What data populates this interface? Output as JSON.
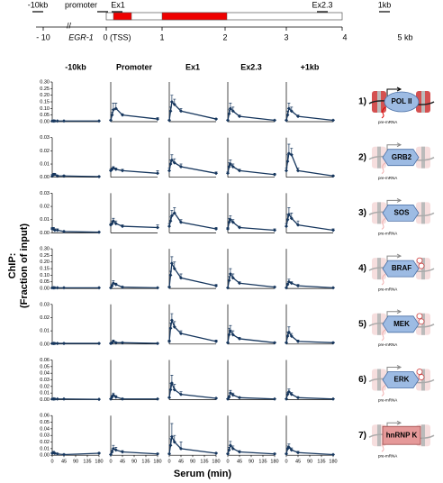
{
  "gene_map": {
    "regions": [
      "-10kb",
      "promoter",
      "Ex1",
      "Ex2.3",
      "1kb"
    ],
    "axis_labels": [
      "- 10",
      "0 (TSS)",
      "1",
      "2",
      "3",
      "4",
      "5 kb"
    ],
    "gene": "EGR-1"
  },
  "y_label": [
    "ChIP:",
    "(Fraction of input)"
  ],
  "x_label": "Serum  (min)",
  "panels": [
    {
      "number": "1)",
      "protein": "POL II"
    },
    {
      "number": "2)",
      "protein": "GRB2"
    },
    {
      "number": "3)",
      "protein": "SOS"
    },
    {
      "number": "4)",
      "protein": "BRAF"
    },
    {
      "number": "5)",
      "protein": "MEK"
    },
    {
      "number": "6)",
      "protein": "ERK"
    },
    {
      "number": "7)",
      "protein": "hnRNP K"
    }
  ],
  "pre_mrna_label": "pre-mRNA",
  "chart_data": [
    {
      "type": "line",
      "title": "-10kb",
      "x": [
        0,
        5,
        10,
        20,
        45,
        180
      ],
      "values": [
        0.005,
        0.005,
        0.005,
        0.005,
        0.005,
        0.005
      ],
      "errors": [
        0.002,
        0.002,
        0.002,
        0.002,
        0.002,
        0.002
      ],
      "color": "#17375e",
      "xlim": [
        0,
        180
      ],
      "ylim": [
        0,
        0.3
      ],
      "yticks": [
        {
          "value": 0,
          "label": "0.00"
        },
        0.05,
        {
          "value": 0.1,
          "label": "0.10"
        },
        0.15,
        {
          "value": 0.2,
          "label": "0.20"
        },
        0.25,
        {
          "value": 0.3,
          "label": "0.30"
        }
      ]
    },
    {
      "type": "line",
      "title": "Promoter",
      "x": [
        0,
        5,
        10,
        20,
        45,
        180
      ],
      "values": [
        0.01,
        0.05,
        0.09,
        0.1,
        0.05,
        0.02
      ],
      "errors": [
        0.005,
        0.02,
        0.05,
        0.04,
        0.01,
        0.01
      ],
      "color": "#17375e",
      "xlim": [
        0,
        180
      ],
      "ylim": [
        0,
        0.3
      ]
    },
    {
      "type": "line",
      "title": "Ex1",
      "x": [
        0,
        5,
        10,
        20,
        45,
        180
      ],
      "values": [
        0.01,
        0.08,
        0.15,
        0.13,
        0.08,
        0.02
      ],
      "errors": [
        0.005,
        0.03,
        0.05,
        0.04,
        0.02,
        0.005
      ],
      "color": "#17375e",
      "xlim": [
        0,
        180
      ],
      "ylim": [
        0,
        0.3
      ]
    },
    {
      "type": "line",
      "title": "Ex2.3",
      "x": [
        0,
        5,
        10,
        20,
        45,
        180
      ],
      "values": [
        0.01,
        0.06,
        0.1,
        0.08,
        0.04,
        0.01
      ],
      "errors": [
        0.005,
        0.03,
        0.04,
        0.03,
        0.01,
        0.005
      ],
      "color": "#17375e",
      "xlim": [
        0,
        180
      ],
      "ylim": [
        0,
        0.3
      ]
    },
    {
      "type": "line",
      "title": "+1kb",
      "x": [
        0,
        5,
        10,
        20,
        45,
        180
      ],
      "values": [
        0.01,
        0.05,
        0.1,
        0.08,
        0.04,
        0.01
      ],
      "errors": [
        0.005,
        0.03,
        0.04,
        0.03,
        0.01,
        0.005
      ],
      "color": "#17375e",
      "xlim": [
        0,
        180
      ],
      "ylim": [
        0,
        0.3
      ]
    },
    {
      "type": "line",
      "x": [
        0,
        5,
        10,
        20,
        45,
        180
      ],
      "values": [
        0.001,
        0.002,
        0.002,
        0.001,
        0.001,
        0.0005
      ],
      "errors": [
        0.001,
        0.001,
        0.001,
        0.0005,
        0.0005,
        0.0003
      ],
      "color": "#17375e",
      "xlim": [
        0,
        180
      ],
      "ylim": [
        0,
        0.03
      ],
      "yticks": [
        {
          "value": 0,
          "label": "0.00"
        },
        0.01,
        0.02,
        0.03
      ]
    },
    {
      "type": "line",
      "x": [
        0,
        5,
        10,
        20,
        45,
        180
      ],
      "values": [
        0.005,
        0.006,
        0.007,
        0.006,
        0.005,
        0.003
      ],
      "errors": [
        0.001,
        0.001,
        0.001,
        0.001,
        0.001,
        0.002
      ],
      "color": "#17375e",
      "xlim": [
        0,
        180
      ],
      "ylim": [
        0,
        0.03
      ]
    },
    {
      "type": "line",
      "x": [
        0,
        5,
        10,
        20,
        45,
        180
      ],
      "values": [
        0.005,
        0.01,
        0.013,
        0.011,
        0.008,
        0.003
      ],
      "errors": [
        0.002,
        0.003,
        0.004,
        0.003,
        0.002,
        0.001
      ],
      "color": "#17375e",
      "xlim": [
        0,
        180
      ],
      "ylim": [
        0,
        0.03
      ]
    },
    {
      "type": "line",
      "x": [
        0,
        5,
        10,
        20,
        45,
        180
      ],
      "values": [
        0.003,
        0.008,
        0.01,
        0.008,
        0.005,
        0.002
      ],
      "errors": [
        0.001,
        0.003,
        0.003,
        0.002,
        0.001,
        0.001
      ],
      "color": "#17375e",
      "xlim": [
        0,
        180
      ],
      "ylim": [
        0,
        0.03
      ]
    },
    {
      "type": "line",
      "x": [
        0,
        5,
        10,
        20,
        45,
        180
      ],
      "values": [
        0.005,
        0.012,
        0.018,
        0.017,
        0.005,
        0.001
      ],
      "errors": [
        0.002,
        0.005,
        0.007,
        0.005,
        0.002,
        0.0005
      ],
      "color": "#17375e",
      "xlim": [
        0,
        180
      ],
      "ylim": [
        0,
        0.03
      ]
    },
    {
      "type": "line",
      "x": [
        0,
        5,
        10,
        20,
        45,
        180
      ],
      "values": [
        0.003,
        0.003,
        0.002,
        0.002,
        0.001,
        0.0005
      ],
      "errors": [
        0.001,
        0.001,
        0.001,
        0.001,
        0.0005,
        0.0003
      ],
      "color": "#17375e",
      "xlim": [
        0,
        180
      ],
      "ylim": [
        0,
        0.03
      ],
      "yticks": [
        {
          "value": 0,
          "label": "0.00"
        },
        0.01,
        0.02,
        0.03
      ]
    },
    {
      "type": "line",
      "x": [
        0,
        5,
        10,
        20,
        45,
        180
      ],
      "values": [
        0.006,
        0.007,
        0.009,
        0.007,
        0.005,
        0.004
      ],
      "errors": [
        0.001,
        0.002,
        0.002,
        0.002,
        0.001,
        0.002
      ],
      "color": "#17375e",
      "xlim": [
        0,
        180
      ],
      "ylim": [
        0,
        0.03
      ]
    },
    {
      "type": "line",
      "x": [
        0,
        5,
        10,
        20,
        45,
        180
      ],
      "values": [
        0.005,
        0.009,
        0.013,
        0.015,
        0.008,
        0.003
      ],
      "errors": [
        0.002,
        0.003,
        0.004,
        0.004,
        0.002,
        0.001
      ],
      "color": "#17375e",
      "xlim": [
        0,
        180
      ],
      "ylim": [
        0,
        0.03
      ]
    },
    {
      "type": "line",
      "x": [
        0,
        5,
        10,
        20,
        45,
        180
      ],
      "values": [
        0.003,
        0.008,
        0.01,
        0.008,
        0.004,
        0.002
      ],
      "errors": [
        0.001,
        0.003,
        0.003,
        0.002,
        0.001,
        0.001
      ],
      "color": "#17375e",
      "xlim": [
        0,
        180
      ],
      "ylim": [
        0,
        0.03
      ]
    },
    {
      "type": "line",
      "x": [
        0,
        5,
        10,
        20,
        45,
        180
      ],
      "values": [
        0.005,
        0.01,
        0.014,
        0.011,
        0.006,
        0.002
      ],
      "errors": [
        0.002,
        0.004,
        0.005,
        0.004,
        0.003,
        0.001
      ],
      "color": "#17375e",
      "xlim": [
        0,
        180
      ],
      "ylim": [
        0,
        0.03
      ]
    },
    {
      "type": "line",
      "x": [
        0,
        5,
        10,
        20,
        45,
        180
      ],
      "values": [
        0.005,
        0.005,
        0.005,
        0.005,
        0.005,
        0.005
      ],
      "errors": [
        0.002,
        0.002,
        0.002,
        0.002,
        0.002,
        0.002
      ],
      "color": "#17375e",
      "xlim": [
        0,
        180
      ],
      "ylim": [
        0,
        0.3
      ],
      "yticks": [
        {
          "value": 0,
          "label": "0.00"
        },
        0.05,
        {
          "value": 0.1,
          "label": "0.10"
        },
        0.15,
        {
          "value": 0.2,
          "label": "0.20"
        },
        0.25,
        {
          "value": 0.3,
          "label": "0.30"
        }
      ]
    },
    {
      "type": "line",
      "x": [
        0,
        5,
        10,
        20,
        45,
        180
      ],
      "values": [
        0.005,
        0.02,
        0.04,
        0.03,
        0.01,
        0.005
      ],
      "errors": [
        0.002,
        0.01,
        0.02,
        0.01,
        0.005,
        0.002
      ],
      "color": "#17375e",
      "xlim": [
        0,
        180
      ],
      "ylim": [
        0,
        0.3
      ]
    },
    {
      "type": "line",
      "x": [
        0,
        5,
        10,
        20,
        45,
        180
      ],
      "values": [
        0.01,
        0.1,
        0.19,
        0.15,
        0.08,
        0.02
      ],
      "errors": [
        0.005,
        0.03,
        0.05,
        0.05,
        0.03,
        0.01
      ],
      "color": "#17375e",
      "xlim": [
        0,
        180
      ],
      "ylim": [
        0,
        0.3
      ]
    },
    {
      "type": "line",
      "x": [
        0,
        5,
        10,
        20,
        45,
        180
      ],
      "values": [
        0.005,
        0.06,
        0.11,
        0.08,
        0.04,
        0.01
      ],
      "errors": [
        0.002,
        0.03,
        0.04,
        0.03,
        0.01,
        0.005
      ],
      "color": "#17375e",
      "xlim": [
        0,
        180
      ],
      "ylim": [
        0,
        0.3
      ]
    },
    {
      "type": "line",
      "x": [
        0,
        5,
        10,
        20,
        45,
        180
      ],
      "values": [
        0.005,
        0.03,
        0.05,
        0.04,
        0.02,
        0.005
      ],
      "errors": [
        0.002,
        0.01,
        0.02,
        0.01,
        0.01,
        0.002
      ],
      "color": "#17375e",
      "xlim": [
        0,
        180
      ],
      "ylim": [
        0,
        0.3
      ]
    },
    {
      "type": "line",
      "x": [
        0,
        5,
        10,
        20,
        45,
        180
      ],
      "values": [
        0.0005,
        0.0005,
        0.0005,
        0.0005,
        0.0005,
        0.0005
      ],
      "errors": [
        0.0003,
        0.0003,
        0.0003,
        0.0003,
        0.0003,
        0.0003
      ],
      "color": "#17375e",
      "xlim": [
        0,
        180
      ],
      "ylim": [
        0,
        0.03
      ],
      "yticks": [
        {
          "value": 0,
          "label": "0.00"
        },
        0.01,
        0.02,
        0.03
      ]
    },
    {
      "type": "line",
      "x": [
        0,
        5,
        10,
        20,
        45,
        180
      ],
      "values": [
        0.0005,
        0.001,
        0.002,
        0.001,
        0.001,
        0.0005
      ],
      "errors": [
        0.0003,
        0.0005,
        0.001,
        0.0005,
        0.0005,
        0.0003
      ],
      "color": "#17375e",
      "xlim": [
        0,
        180
      ],
      "ylim": [
        0,
        0.03
      ]
    },
    {
      "type": "line",
      "x": [
        0,
        5,
        10,
        20,
        45,
        180
      ],
      "values": [
        0.002,
        0.012,
        0.018,
        0.013,
        0.008,
        0.002
      ],
      "errors": [
        0.001,
        0.004,
        0.005,
        0.004,
        0.002,
        0.001
      ],
      "color": "#17375e",
      "xlim": [
        0,
        180
      ],
      "ylim": [
        0,
        0.03
      ]
    },
    {
      "type": "line",
      "x": [
        0,
        5,
        10,
        20,
        45,
        180
      ],
      "values": [
        0.001,
        0.007,
        0.01,
        0.007,
        0.004,
        0.001
      ],
      "errors": [
        0.0005,
        0.005,
        0.004,
        0.003,
        0.001,
        0.0005
      ],
      "color": "#17375e",
      "xlim": [
        0,
        180
      ],
      "ylim": [
        0,
        0.03
      ]
    },
    {
      "type": "line",
      "x": [
        0,
        5,
        10,
        20,
        45,
        180
      ],
      "values": [
        0.001,
        0.006,
        0.009,
        0.006,
        0.002,
        0.001
      ],
      "errors": [
        0.0005,
        0.003,
        0.004,
        0.002,
        0.001,
        0.0005
      ],
      "color": "#17375e",
      "xlim": [
        0,
        180
      ],
      "ylim": [
        0,
        0.03
      ]
    },
    {
      "type": "line",
      "x": [
        0,
        5,
        10,
        20,
        45,
        180
      ],
      "values": [
        0.001,
        0.001,
        0.001,
        0.001,
        0.001,
        0.0005
      ],
      "errors": [
        0.0005,
        0.0005,
        0.0005,
        0.0005,
        0.0005,
        0.0003
      ],
      "color": "#17375e",
      "xlim": [
        0,
        180
      ],
      "ylim": [
        0,
        0.06
      ],
      "yticks": [
        {
          "value": 0,
          "label": "0.00"
        },
        0.01,
        0.02,
        0.03,
        0.04,
        0.05,
        0.06
      ]
    },
    {
      "type": "line",
      "x": [
        0,
        5,
        10,
        20,
        45,
        180
      ],
      "values": [
        0.001,
        0.004,
        0.007,
        0.004,
        0.001,
        0.001
      ],
      "errors": [
        0.0005,
        0.002,
        0.003,
        0.002,
        0.001,
        0.0005
      ],
      "color": "#17375e",
      "xlim": [
        0,
        180
      ],
      "ylim": [
        0,
        0.06
      ]
    },
    {
      "type": "line",
      "x": [
        0,
        5,
        10,
        20,
        45,
        180
      ],
      "values": [
        0.003,
        0.015,
        0.025,
        0.015,
        0.008,
        0.002
      ],
      "errors": [
        0.001,
        0.01,
        0.012,
        0.008,
        0.004,
        0.001
      ],
      "color": "#17375e",
      "xlim": [
        0,
        180
      ],
      "ylim": [
        0,
        0.06
      ]
    },
    {
      "type": "line",
      "x": [
        0,
        5,
        10,
        20,
        45,
        180
      ],
      "values": [
        0.001,
        0.004,
        0.01,
        0.007,
        0.003,
        0.001
      ],
      "errors": [
        0.0005,
        0.002,
        0.004,
        0.003,
        0.001,
        0.0005
      ],
      "color": "#17375e",
      "xlim": [
        0,
        180
      ],
      "ylim": [
        0,
        0.06
      ]
    },
    {
      "type": "line",
      "x": [
        0,
        5,
        10,
        20,
        45,
        180
      ],
      "values": [
        0.001,
        0.008,
        0.012,
        0.008,
        0.003,
        0.001
      ],
      "errors": [
        0.0005,
        0.003,
        0.004,
        0.003,
        0.001,
        0.0005
      ],
      "color": "#17375e",
      "xlim": [
        0,
        180
      ],
      "ylim": [
        0,
        0.06
      ]
    },
    {
      "type": "line",
      "x": [
        0,
        5,
        10,
        20,
        45,
        180
      ],
      "values": [
        0.003,
        0.004,
        0.003,
        0.002,
        0.001,
        0.003
      ],
      "errors": [
        0.001,
        0.002,
        0.001,
        0.001,
        0.001,
        0.001
      ],
      "color": "#17375e",
      "xlim": [
        0,
        180
      ],
      "ylim": [
        0,
        0.06
      ],
      "yticks": [
        {
          "value": 0,
          "label": "0.00"
        },
        0.01,
        0.02,
        0.03,
        0.04,
        0.05,
        0.06
      ],
      "xticks": [
        0,
        45,
        90,
        135,
        180
      ]
    },
    {
      "type": "line",
      "x": [
        0,
        5,
        10,
        20,
        45,
        180
      ],
      "values": [
        0.001,
        0.005,
        0.01,
        0.008,
        0.005,
        0.002
      ],
      "errors": [
        0.0005,
        0.003,
        0.005,
        0.004,
        0.002,
        0.001
      ],
      "color": "#17375e",
      "xlim": [
        0,
        180
      ],
      "ylim": [
        0,
        0.06
      ],
      "xticks": [
        0,
        45,
        90,
        135,
        180
      ]
    },
    {
      "type": "line",
      "x": [
        0,
        5,
        10,
        20,
        45,
        180
      ],
      "values": [
        0.002,
        0.015,
        0.028,
        0.02,
        0.01,
        0.003
      ],
      "errors": [
        0.001,
        0.01,
        0.02,
        0.01,
        0.01,
        0.001
      ],
      "color": "#17375e",
      "xlim": [
        0,
        180
      ],
      "ylim": [
        0,
        0.06
      ],
      "xticks": [
        0,
        45,
        90,
        135,
        180
      ]
    },
    {
      "type": "line",
      "x": [
        0,
        5,
        10,
        20,
        45,
        180
      ],
      "values": [
        0.002,
        0.008,
        0.015,
        0.01,
        0.005,
        0.002
      ],
      "errors": [
        0.001,
        0.004,
        0.006,
        0.004,
        0.002,
        0.001
      ],
      "color": "#17375e",
      "xlim": [
        0,
        180
      ],
      "ylim": [
        0,
        0.06
      ],
      "xticks": [
        0,
        45,
        90,
        135,
        180
      ]
    },
    {
      "type": "line",
      "x": [
        0,
        5,
        10,
        20,
        45,
        180
      ],
      "values": [
        0.002,
        0.01,
        0.012,
        0.008,
        0.004,
        0.001
      ],
      "errors": [
        0.001,
        0.004,
        0.005,
        0.003,
        0.002,
        0.0005
      ],
      "color": "#17375e",
      "xlim": [
        0,
        180
      ],
      "ylim": [
        0,
        0.06
      ],
      "xticks": [
        0,
        45,
        90,
        135,
        180
      ]
    }
  ]
}
